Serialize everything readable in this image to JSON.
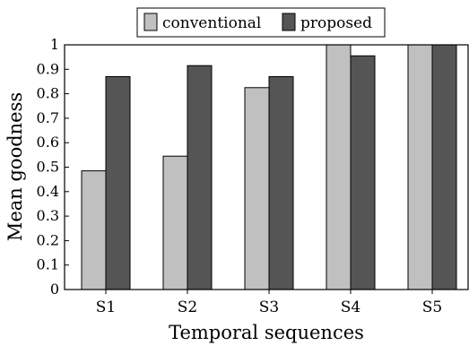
{
  "chart_data": {
    "type": "bar",
    "title": "",
    "xlabel": "Temporal sequences",
    "ylabel": "Mean goodness",
    "categories": [
      "S1",
      "S2",
      "S3",
      "S4",
      "S5"
    ],
    "ylim": [
      0,
      1
    ],
    "yticks": [
      "0",
      "0.1",
      "0.2",
      "0.3",
      "0.4",
      "0.5",
      "0.6",
      "0.7",
      "0.8",
      "0.9",
      "1"
    ],
    "grid": false,
    "legend_position": "top-center",
    "series": [
      {
        "name": "conventional",
        "color": "#c0c0c0",
        "values": [
          0.485,
          0.545,
          0.825,
          1.0,
          1.0
        ]
      },
      {
        "name": "proposed",
        "color": "#555555",
        "values": [
          0.87,
          0.915,
          0.87,
          0.955,
          1.0
        ]
      }
    ]
  }
}
